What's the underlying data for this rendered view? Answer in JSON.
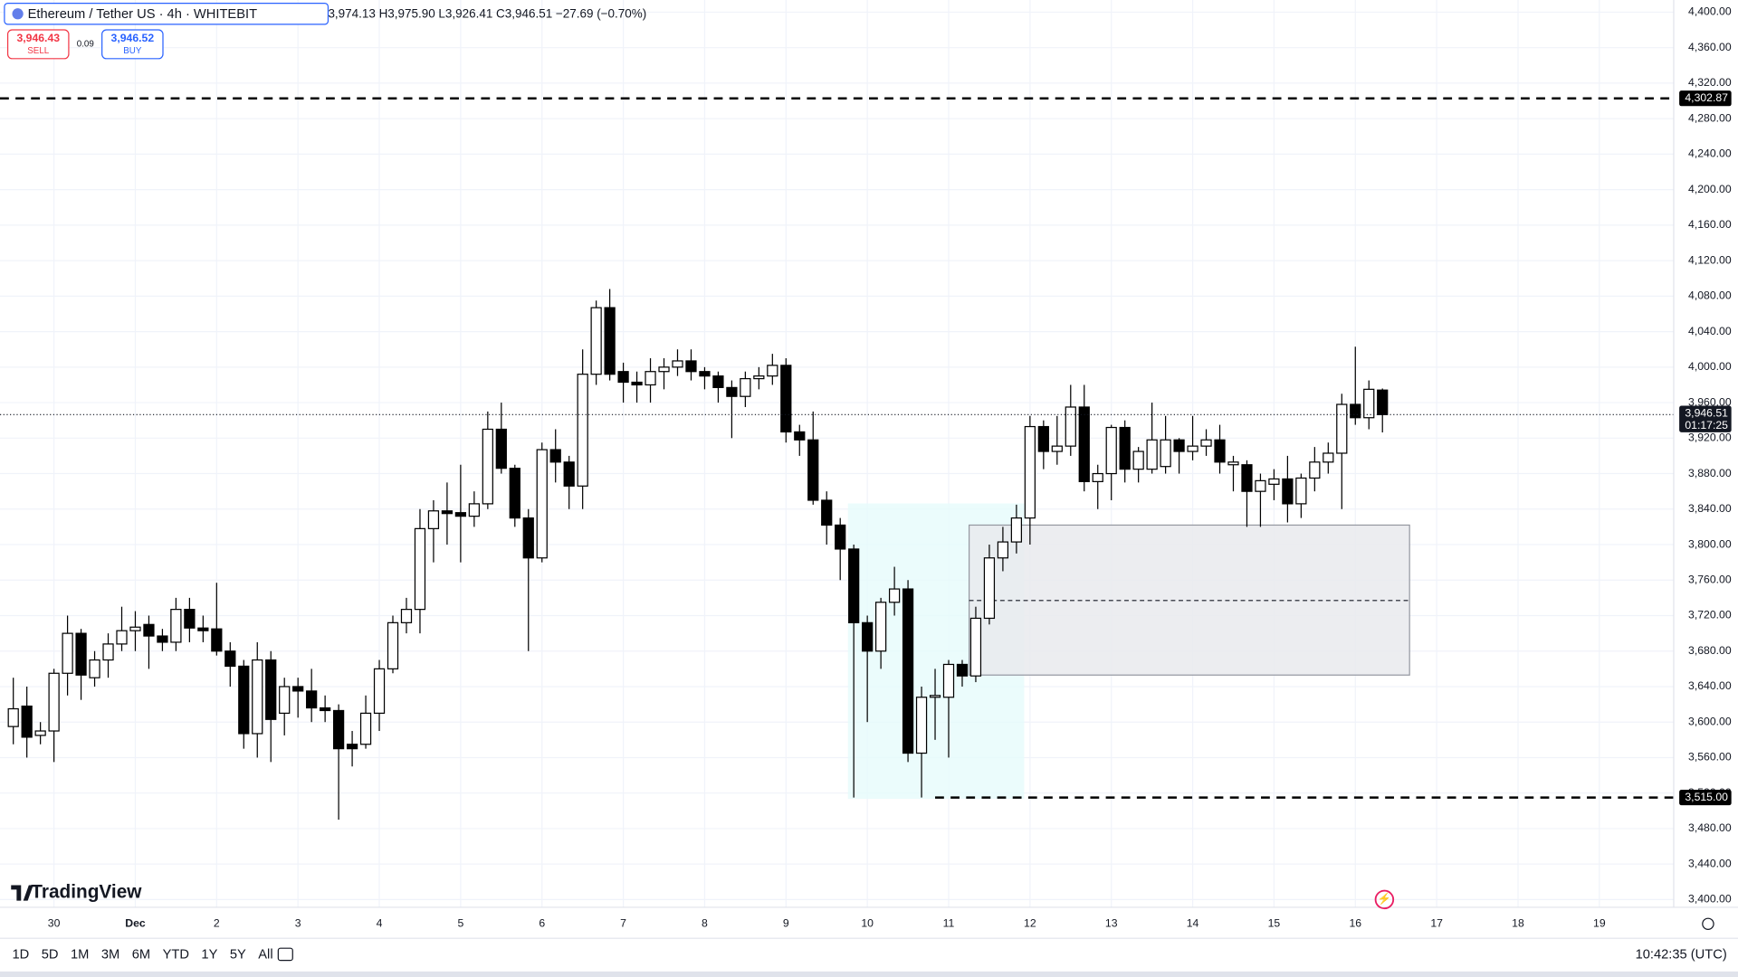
{
  "chart_data": {
    "type": "candlestick",
    "title": "Ethereum / Tether US · 4h · WHITEBIT",
    "ohlc_text": "3,974.13 H3,975.90 L3,926.41 C3,946.51 −27.69 (−0.70%)",
    "sell": {
      "price": "3,946.43",
      "label": "SELL"
    },
    "spread": "0.09",
    "buy": {
      "price": "3,946.52",
      "label": "BUY"
    },
    "up_color": "#ffffff",
    "down_color": "#000000",
    "candles": [
      [
        3595,
        3650,
        3575,
        3615
      ],
      [
        3618,
        3640,
        3560,
        3583
      ],
      [
        3585,
        3600,
        3575,
        3590
      ],
      [
        3590,
        3660,
        3555,
        3655
      ],
      [
        3655,
        3720,
        3630,
        3700
      ],
      [
        3700,
        3705,
        3625,
        3653
      ],
      [
        3650,
        3680,
        3640,
        3670
      ],
      [
        3670,
        3700,
        3650,
        3688
      ],
      [
        3688,
        3730,
        3680,
        3703
      ],
      [
        3703,
        3725,
        3680,
        3707
      ],
      [
        3710,
        3720,
        3660,
        3697
      ],
      [
        3697,
        3705,
        3680,
        3690
      ],
      [
        3690,
        3740,
        3680,
        3727
      ],
      [
        3727,
        3740,
        3690,
        3706
      ],
      [
        3706,
        3720,
        3690,
        3703
      ],
      [
        3705,
        3757,
        3675,
        3680
      ],
      [
        3680,
        3690,
        3640,
        3663
      ],
      [
        3663,
        3670,
        3570,
        3587
      ],
      [
        3587,
        3690,
        3560,
        3670
      ],
      [
        3670,
        3680,
        3555,
        3603
      ],
      [
        3610,
        3650,
        3585,
        3640
      ],
      [
        3640,
        3650,
        3605,
        3635
      ],
      [
        3635,
        3660,
        3600,
        3616
      ],
      [
        3616,
        3630,
        3600,
        3613
      ],
      [
        3613,
        3620,
        3490,
        3570
      ],
      [
        3575,
        3590,
        3550,
        3570
      ],
      [
        3575,
        3630,
        3570,
        3610
      ],
      [
        3610,
        3670,
        3590,
        3660
      ],
      [
        3660,
        3720,
        3655,
        3712
      ],
      [
        3712,
        3740,
        3700,
        3727
      ],
      [
        3727,
        3840,
        3700,
        3818
      ],
      [
        3818,
        3850,
        3780,
        3838
      ],
      [
        3838,
        3870,
        3800,
        3835
      ],
      [
        3836,
        3890,
        3780,
        3832
      ],
      [
        3832,
        3860,
        3820,
        3846
      ],
      [
        3846,
        3950,
        3840,
        3930
      ],
      [
        3930,
        3960,
        3880,
        3886
      ],
      [
        3886,
        3890,
        3820,
        3830
      ],
      [
        3830,
        3840,
        3680,
        3785
      ],
      [
        3785,
        3915,
        3780,
        3907
      ],
      [
        3907,
        3930,
        3870,
        3893
      ],
      [
        3893,
        3900,
        3840,
        3866
      ],
      [
        3866,
        4020,
        3840,
        3992
      ],
      [
        3992,
        4075,
        3980,
        4067
      ],
      [
        4067,
        4088,
        3985,
        3992
      ],
      [
        3995,
        4005,
        3960,
        3983
      ],
      [
        3983,
        3995,
        3960,
        3980
      ],
      [
        3980,
        4010,
        3960,
        3995
      ],
      [
        3995,
        4010,
        3975,
        4000
      ],
      [
        4000,
        4020,
        3990,
        4007
      ],
      [
        4007,
        4020,
        3985,
        3995
      ],
      [
        3995,
        4000,
        3975,
        3990
      ],
      [
        3990,
        3995,
        3960,
        3977
      ],
      [
        3977,
        3985,
        3920,
        3967
      ],
      [
        3967,
        3995,
        3955,
        3987
      ],
      [
        3987,
        4000,
        3975,
        3990
      ],
      [
        3990,
        4015,
        3980,
        4002
      ],
      [
        4002,
        4010,
        3915,
        3927
      ],
      [
        3927,
        3935,
        3900,
        3918
      ],
      [
        3918,
        3950,
        3845,
        3850
      ],
      [
        3850,
        3860,
        3800,
        3822
      ],
      [
        3822,
        3830,
        3760,
        3795
      ],
      [
        3795,
        3800,
        3515,
        3712
      ],
      [
        3712,
        3720,
        3600,
        3680
      ],
      [
        3680,
        3740,
        3660,
        3735
      ],
      [
        3735,
        3775,
        3720,
        3750
      ],
      [
        3750,
        3760,
        3555,
        3565
      ],
      [
        3565,
        3640,
        3515,
        3628
      ],
      [
        3628,
        3660,
        3580,
        3630
      ],
      [
        3628,
        3670,
        3560,
        3665
      ],
      [
        3665,
        3670,
        3640,
        3652
      ],
      [
        3652,
        3730,
        3645,
        3717
      ],
      [
        3717,
        3800,
        3710,
        3785
      ],
      [
        3785,
        3820,
        3770,
        3803
      ],
      [
        3803,
        3845,
        3790,
        3830
      ],
      [
        3830,
        3945,
        3800,
        3933
      ],
      [
        3933,
        3940,
        3885,
        3905
      ],
      [
        3905,
        3945,
        3890,
        3911
      ],
      [
        3911,
        3980,
        3900,
        3955
      ],
      [
        3955,
        3980,
        3860,
        3871
      ],
      [
        3871,
        3890,
        3840,
        3880
      ],
      [
        3880,
        3935,
        3850,
        3932
      ],
      [
        3932,
        3940,
        3870,
        3885
      ],
      [
        3885,
        3910,
        3870,
        3905
      ],
      [
        3885,
        3960,
        3880,
        3918
      ],
      [
        3888,
        3945,
        3880,
        3918
      ],
      [
        3918,
        3920,
        3880,
        3905
      ],
      [
        3905,
        3945,
        3895,
        3911
      ],
      [
        3911,
        3930,
        3900,
        3918
      ],
      [
        3918,
        3935,
        3880,
        3893
      ],
      [
        3890,
        3900,
        3860,
        3893
      ],
      [
        3890,
        3895,
        3820,
        3860
      ],
      [
        3860,
        3880,
        3820,
        3872
      ],
      [
        3868,
        3885,
        3850,
        3874
      ],
      [
        3874,
        3900,
        3825,
        3846
      ],
      [
        3846,
        3880,
        3830,
        3875
      ],
      [
        3875,
        3910,
        3860,
        3893
      ],
      [
        3893,
        3915,
        3880,
        3903
      ],
      [
        3903,
        3970,
        3840,
        3958
      ],
      [
        3958,
        4023,
        3935,
        3943
      ],
      [
        3943,
        3985,
        3930,
        3975
      ],
      [
        3974.13,
        3975.9,
        3926.41,
        3946.51
      ]
    ],
    "xticks": [
      "30",
      "Dec",
      "2",
      "3",
      "4",
      "5",
      "6",
      "7",
      "8",
      "9",
      "10",
      "11",
      "12",
      "13",
      "14",
      "15",
      "16",
      "17",
      "18",
      "19"
    ],
    "ylim": [
      3391.3,
      4413.7
    ],
    "yticks": [
      {
        "value": 3400,
        "label": "3,400.00"
      },
      {
        "value": 3440,
        "label": "3,440.00"
      },
      {
        "value": 3480,
        "label": "3,480.00"
      },
      {
        "value": 3520,
        "label": "3,520.00"
      },
      {
        "value": 3560,
        "label": "3,560.00"
      },
      {
        "value": 3600,
        "label": "3,600.00"
      },
      {
        "value": 3640,
        "label": "3,640.00"
      },
      {
        "value": 3680,
        "label": "3,680.00"
      },
      {
        "value": 3720,
        "label": "3,720.00"
      },
      {
        "value": 3760,
        "label": "3,760.00"
      },
      {
        "value": 3800,
        "label": "3,800.00"
      },
      {
        "value": 3840,
        "label": "3,840.00"
      },
      {
        "value": 3880,
        "label": "3,880.00"
      },
      {
        "value": 3920,
        "label": "3,920.00"
      },
      {
        "value": 3960,
        "label": "3,960.00"
      },
      {
        "value": 4000,
        "label": "4,000.00"
      },
      {
        "value": 4040,
        "label": "4,040.00"
      },
      {
        "value": 4080,
        "label": "4,080.00"
      },
      {
        "value": 4120,
        "label": "4,120.00"
      },
      {
        "value": 4160,
        "label": "4,160.00"
      },
      {
        "value": 4200,
        "label": "4,200.00"
      },
      {
        "value": 4240,
        "label": "4,240.00"
      },
      {
        "value": 4280,
        "label": "4,280.00"
      },
      {
        "value": 4320,
        "label": "4,320.00"
      },
      {
        "value": 4360,
        "label": "4,360.00"
      },
      {
        "value": 4400,
        "label": "4,400.00"
      }
    ],
    "grid": true,
    "levels": [
      {
        "value": 4302.87,
        "label": "4,302.87"
      },
      {
        "value": 3515,
        "label": "3,515.00"
      }
    ],
    "last_price": {
      "value": 3946.51,
      "label": "3,946.51",
      "countdown": "01:17:25"
    },
    "zone": {
      "top": 3822,
      "bottom": 3653,
      "mid": 3737
    },
    "ranges": [
      "1D",
      "5D",
      "1M",
      "3M",
      "6M",
      "YTD",
      "1Y",
      "5Y",
      "All"
    ],
    "clock": "10:42:35 (UTC)",
    "brand": "TradingView"
  }
}
